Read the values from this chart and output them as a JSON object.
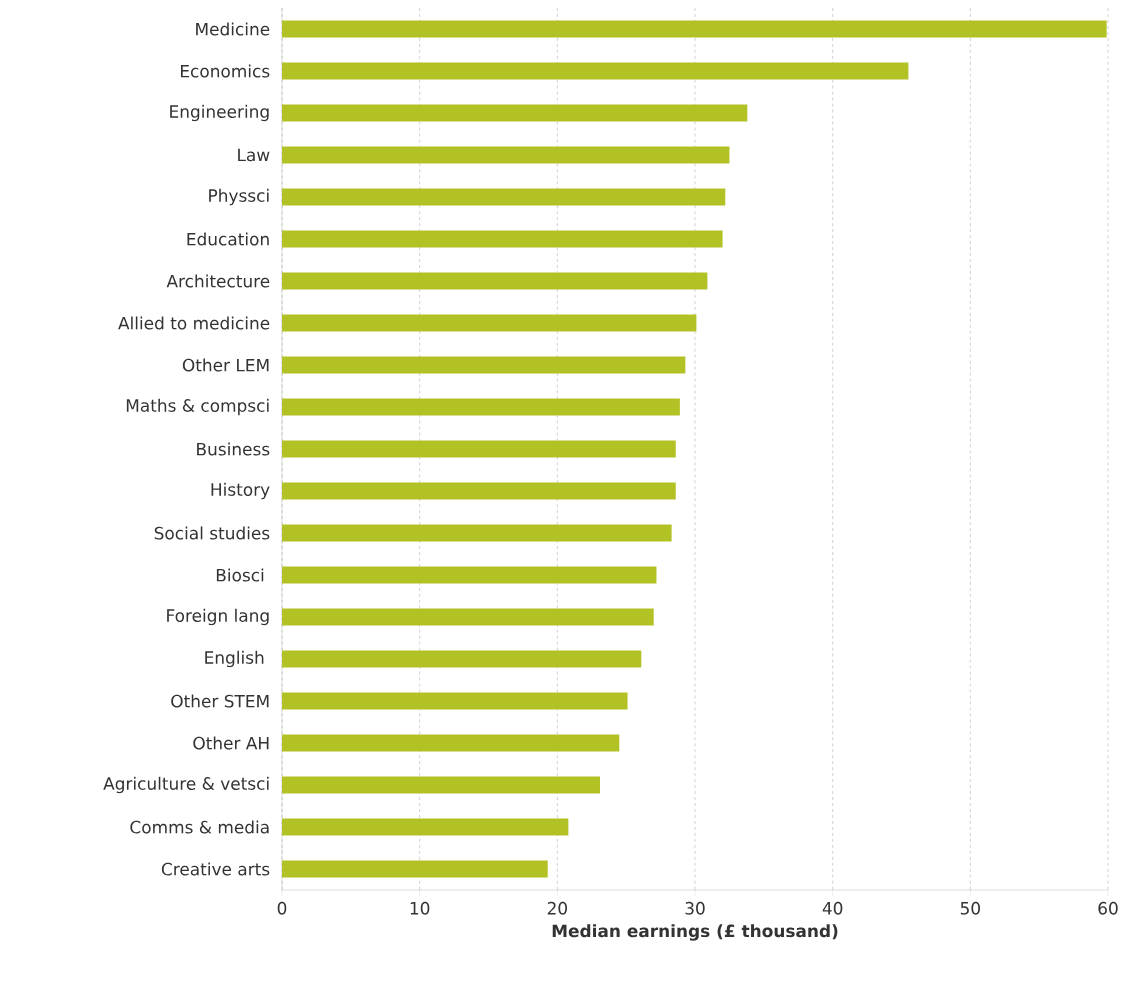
{
  "chart_data": {
    "type": "bar",
    "orientation": "horizontal",
    "xlabel": "Median earnings (£ thousand)",
    "categories": [
      "Medicine",
      "Economics",
      "Engineering",
      "Law",
      "Physsci",
      "Education",
      "Architecture",
      "Allied to medicine",
      "Other LEM",
      "Maths & compsci",
      "Business",
      "History",
      "Social studies",
      "Biosci ",
      "Foreign lang",
      "English ",
      "Other STEM",
      "Other AH",
      "Agriculture & vetsci",
      "Comms & media",
      "Creative arts"
    ],
    "values": [
      59.9,
      45.5,
      33.8,
      32.5,
      32.2,
      32.0,
      30.9,
      30.1,
      29.3,
      28.9,
      28.6,
      28.6,
      28.3,
      27.2,
      27.0,
      26.1,
      25.1,
      24.5,
      23.1,
      20.8,
      19.3
    ],
    "color": "#b2c124",
    "xlim": [
      0,
      60
    ],
    "xticks": [
      0,
      10,
      20,
      30,
      40,
      50,
      60
    ],
    "grid": "x"
  }
}
